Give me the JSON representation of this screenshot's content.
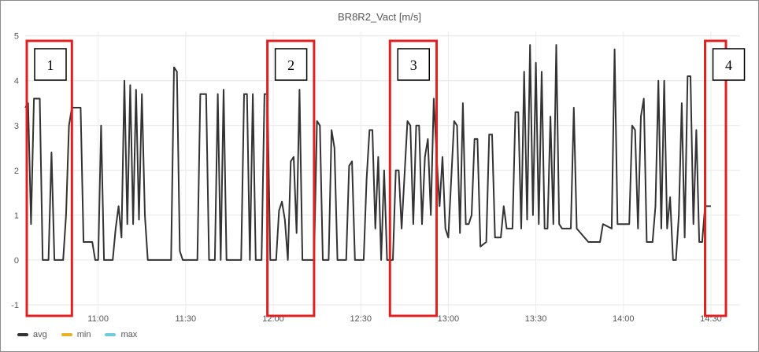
{
  "chart_data": {
    "type": "line",
    "title": "BR8R2_Vact [m/s]",
    "xlabel": "",
    "ylabel": "",
    "x_ticks": [
      "11:00",
      "11:30",
      "12:00",
      "12:30",
      "13:00",
      "13:30",
      "14:00",
      "14:30"
    ],
    "y_ticks": [
      5,
      4,
      3,
      2,
      1,
      0,
      -1
    ],
    "xlim": [
      "10:35",
      "14:40"
    ],
    "ylim": [
      -1.3,
      5.1
    ],
    "grid": true,
    "legend_position": "bottom-left",
    "series": [
      {
        "name": "avg",
        "color": "#333333",
        "points": [
          [
            "10:35",
            3.4
          ],
          [
            "10:36",
            3.5
          ],
          [
            "10:37",
            0.8
          ],
          [
            "10:38",
            3.6
          ],
          [
            "10:40",
            3.6
          ],
          [
            "10:41",
            0.0
          ],
          [
            "10:43",
            0.0
          ],
          [
            "10:44",
            2.4
          ],
          [
            "10:45",
            0.0
          ],
          [
            "10:48",
            0.0
          ],
          [
            "10:49",
            1.0
          ],
          [
            "10:50",
            3.0
          ],
          [
            "10:51",
            3.4
          ],
          [
            "10:54",
            3.4
          ],
          [
            "10:55",
            0.4
          ],
          [
            "10:58",
            0.4
          ],
          [
            "10:59",
            0.0
          ],
          [
            "11:00",
            0.0
          ],
          [
            "11:01",
            3.0
          ],
          [
            "11:02",
            0.0
          ],
          [
            "11:05",
            0.0
          ],
          [
            "11:06",
            0.7
          ],
          [
            "11:07",
            1.2
          ],
          [
            "11:08",
            0.5
          ],
          [
            "11:09",
            4.0
          ],
          [
            "11:10",
            0.8
          ],
          [
            "11:11",
            3.9
          ],
          [
            "11:12",
            0.8
          ],
          [
            "11:13",
            3.8
          ],
          [
            "11:14",
            0.9
          ],
          [
            "11:15",
            3.7
          ],
          [
            "11:16",
            1.0
          ],
          [
            "11:17",
            0.0
          ],
          [
            "11:25",
            0.0
          ],
          [
            "11:26",
            4.3
          ],
          [
            "11:27",
            4.2
          ],
          [
            "11:28",
            0.2
          ],
          [
            "11:29",
            0.0
          ],
          [
            "11:34",
            0.0
          ],
          [
            "11:35",
            3.7
          ],
          [
            "11:37",
            3.7
          ],
          [
            "11:38",
            0.0
          ],
          [
            "11:40",
            0.0
          ],
          [
            "11:41",
            3.7
          ],
          [
            "11:42",
            0.0
          ],
          [
            "11:43",
            3.8
          ],
          [
            "11:44",
            0.0
          ],
          [
            "11:49",
            0.0
          ],
          [
            "11:50",
            3.7
          ],
          [
            "11:51",
            3.7
          ],
          [
            "11:52",
            0.0
          ],
          [
            "11:53",
            3.7
          ],
          [
            "11:54",
            0.0
          ],
          [
            "11:56",
            0.0
          ],
          [
            "11:57",
            3.7
          ],
          [
            "11:58",
            3.7
          ],
          [
            "11:59",
            0.0
          ],
          [
            "12:01",
            0.0
          ],
          [
            "12:02",
            1.1
          ],
          [
            "12:03",
            1.3
          ],
          [
            "12:04",
            0.9
          ],
          [
            "12:05",
            0.0
          ],
          [
            "12:06",
            2.2
          ],
          [
            "12:07",
            2.3
          ],
          [
            "12:08",
            0.6
          ],
          [
            "12:09",
            3.8
          ],
          [
            "12:10",
            0.0
          ],
          [
            "12:14",
            0.0
          ],
          [
            "12:15",
            3.1
          ],
          [
            "12:16",
            3.0
          ],
          [
            "12:17",
            0.0
          ],
          [
            "12:19",
            0.0
          ],
          [
            "12:20",
            2.9
          ],
          [
            "12:21",
            2.5
          ],
          [
            "12:22",
            0.0
          ],
          [
            "12:25",
            0.0
          ],
          [
            "12:26",
            2.1
          ],
          [
            "12:27",
            2.2
          ],
          [
            "12:28",
            0.0
          ],
          [
            "12:31",
            0.0
          ],
          [
            "12:32",
            1.8
          ],
          [
            "12:33",
            2.9
          ],
          [
            "12:34",
            2.9
          ],
          [
            "12:35",
            0.7
          ],
          [
            "12:36",
            2.3
          ],
          [
            "12:37",
            0.0
          ],
          [
            "12:38",
            2.0
          ],
          [
            "12:39",
            0.0
          ],
          [
            "12:41",
            0.0
          ],
          [
            "12:42",
            2.0
          ],
          [
            "12:43",
            2.0
          ],
          [
            "12:44",
            0.7
          ],
          [
            "12:46",
            3.1
          ],
          [
            "12:47",
            3.0
          ],
          [
            "12:48",
            0.8
          ],
          [
            "12:49",
            3.0
          ],
          [
            "12:50",
            3.0
          ],
          [
            "12:51",
            0.8
          ],
          [
            "12:52",
            2.3
          ],
          [
            "12:53",
            2.7
          ],
          [
            "12:54",
            1.0
          ],
          [
            "12:55",
            3.6
          ],
          [
            "12:56",
            2.3
          ],
          [
            "12:57",
            1.2
          ],
          [
            "12:58",
            2.3
          ],
          [
            "12:59",
            0.7
          ],
          [
            "13:00",
            0.5
          ],
          [
            "13:02",
            3.1
          ],
          [
            "13:03",
            3.0
          ],
          [
            "13:04",
            0.6
          ],
          [
            "13:05",
            3.5
          ],
          [
            "13:06",
            0.8
          ],
          [
            "13:07",
            0.8
          ],
          [
            "13:08",
            1.0
          ],
          [
            "13:09",
            2.7
          ],
          [
            "13:10",
            2.7
          ],
          [
            "13:11",
            0.3
          ],
          [
            "13:13",
            0.4
          ],
          [
            "13:14",
            2.8
          ],
          [
            "13:15",
            2.8
          ],
          [
            "13:16",
            0.5
          ],
          [
            "13:18",
            0.5
          ],
          [
            "13:19",
            1.2
          ],
          [
            "13:20",
            0.7
          ],
          [
            "13:22",
            0.7
          ],
          [
            "13:23",
            3.3
          ],
          [
            "13:24",
            3.3
          ],
          [
            "13:25",
            0.7
          ],
          [
            "13:26",
            4.2
          ],
          [
            "13:27",
            0.9
          ],
          [
            "13:28",
            4.8
          ],
          [
            "13:29",
            1.0
          ],
          [
            "13:30",
            4.4
          ],
          [
            "13:31",
            0.8
          ],
          [
            "13:32",
            4.2
          ],
          [
            "13:33",
            0.7
          ],
          [
            "13:34",
            0.7
          ],
          [
            "13:35",
            3.2
          ],
          [
            "13:36",
            0.8
          ],
          [
            "13:37",
            4.8
          ],
          [
            "13:38",
            0.8
          ],
          [
            "13:39",
            0.7
          ],
          [
            "13:42",
            0.7
          ],
          [
            "13:43",
            3.4
          ],
          [
            "13:44",
            0.7
          ],
          [
            "13:48",
            0.4
          ],
          [
            "13:52",
            0.4
          ],
          [
            "13:53",
            0.8
          ],
          [
            "13:56",
            0.7
          ],
          [
            "13:57",
            4.7
          ],
          [
            "13:58",
            0.8
          ],
          [
            "14:02",
            0.8
          ],
          [
            "14:03",
            3.0
          ],
          [
            "14:04",
            2.9
          ],
          [
            "14:05",
            0.7
          ],
          [
            "14:06",
            3.2
          ],
          [
            "14:07",
            3.6
          ],
          [
            "14:08",
            0.4
          ],
          [
            "14:10",
            0.4
          ],
          [
            "14:11",
            1.2
          ],
          [
            "14:12",
            4.0
          ],
          [
            "14:13",
            0.7
          ],
          [
            "14:14",
            4.0
          ],
          [
            "14:15",
            0.7
          ],
          [
            "14:16",
            1.4
          ],
          [
            "14:17",
            0.0
          ],
          [
            "14:18",
            0.0
          ],
          [
            "14:19",
            1.0
          ],
          [
            "14:20",
            3.5
          ],
          [
            "14:21",
            0.5
          ],
          [
            "14:22",
            4.1
          ],
          [
            "14:23",
            4.1
          ],
          [
            "14:24",
            0.8
          ],
          [
            "14:25",
            2.9
          ],
          [
            "14:26",
            0.4
          ],
          [
            "14:27",
            0.4
          ],
          [
            "14:28",
            1.2
          ],
          [
            "14:30",
            1.2
          ]
        ]
      },
      {
        "name": "min",
        "color": "#e5b224",
        "points": []
      },
      {
        "name": "max",
        "color": "#6fcbd9",
        "points": []
      }
    ],
    "annotations": [
      {
        "label": "1",
        "x_start": "10:35",
        "x_end": "10:51"
      },
      {
        "label": "2",
        "x_start": "11:58",
        "x_end": "12:14"
      },
      {
        "label": "3",
        "x_start": "12:40",
        "x_end": "12:56"
      },
      {
        "label": "4",
        "x_start": "14:28",
        "x_end": "14:45"
      }
    ],
    "annotation_color": "#e02020"
  }
}
